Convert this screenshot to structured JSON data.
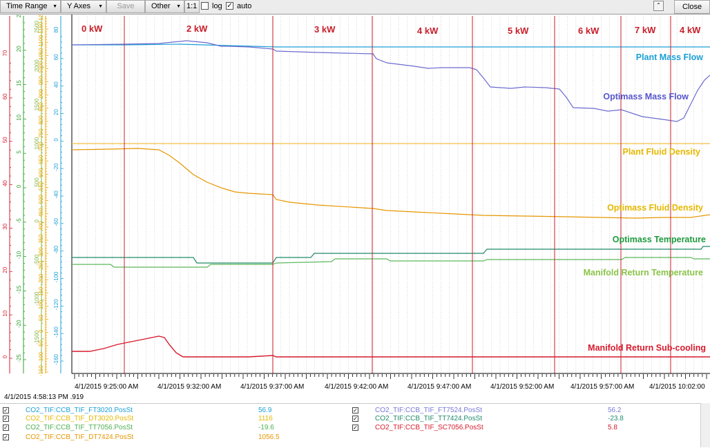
{
  "toolbar": {
    "time_range": "Time Range",
    "y_axes": "Y Axes",
    "save": "Save",
    "other": "Other",
    "ratio": "1:1",
    "log": "log",
    "auto": "auto",
    "auto_checked": "✓",
    "close": "Close"
  },
  "status_time": "4/1/2015 4:58:13 PM .919",
  "segments": [
    {
      "label": "0 kW"
    },
    {
      "label": "2 kW"
    },
    {
      "label": "3 kW"
    },
    {
      "label": "4 kW"
    },
    {
      "label": "5 kW"
    },
    {
      "label": "6 kW"
    },
    {
      "label": "7 kW"
    },
    {
      "label": "4 kW"
    }
  ],
  "time_labels": [
    "4/1/2015 9:25:00 AM",
    "4/1/2015 9:32:00 AM",
    "4/1/2015 9:37:00 AM",
    "4/1/2015 9:42:00 AM",
    "4/1/2015 9:47:00 AM",
    "4/1/2015 9:52:00 AM",
    "4/1/2015 9:57:00 AM",
    "4/1/2015 10:02:00"
  ],
  "annotations": [
    {
      "text": "Plant Mass Flow",
      "color": "#1a9fd6"
    },
    {
      "text": "Optimass Mass Flow",
      "color": "#5555cc"
    },
    {
      "text": "Plant Fluid Density",
      "color": "#e6b800"
    },
    {
      "text": "Optimass Fluid Density",
      "color": "#e6b800"
    },
    {
      "text": "Optimass Temperature",
      "color": "#1f9a3f"
    },
    {
      "text": "Manifold Return Temperature",
      "color": "#8bc34a"
    },
    {
      "text": "Manifold Return Sub-cooling",
      "color": "#d61a2c"
    }
  ],
  "axes": [
    {
      "color": "#d61a2c",
      "labels": [
        "0",
        "10",
        "20",
        "30",
        "40",
        "50",
        "60",
        "70"
      ]
    },
    {
      "color": "#2e9d2e",
      "labels": [
        "-25",
        "-20",
        "-15",
        "-10",
        "-5",
        "0",
        "5",
        "10",
        "15",
        "20",
        "25"
      ]
    },
    {
      "color": "#7fb541",
      "labels": [
        "-1500",
        "-1000",
        "-500",
        "0",
        "500",
        "1000",
        "1500",
        "2000",
        "2500"
      ]
    },
    {
      "color": "#f2a600",
      "labels": [
        "-150",
        "-100",
        "-50",
        "0",
        "50",
        "100",
        "150",
        "200",
        "250",
        "300",
        "350",
        "400",
        "450",
        "500",
        "550",
        "600",
        "650",
        "700",
        "750",
        "800",
        "850",
        "900",
        "950",
        "1000",
        "1050",
        "1100",
        "1150",
        "1200"
      ]
    },
    {
      "color": "#1fa0d6",
      "labels": [
        "-160",
        "-140",
        "-120",
        "-100",
        "-80",
        "-60",
        "-40",
        "-20",
        "0",
        "20",
        "40",
        "60",
        "80"
      ]
    }
  ],
  "legend": [
    {
      "name": "CO2_TIF:CCB_TIF_FT3020.PosSt",
      "value": "56.9",
      "color": "#1a9fd6",
      "check": "✓"
    },
    {
      "name": "CO2_TIF:CCB_TIF_DT3020.PosSt",
      "value": "1116",
      "color": "#e6b800",
      "check": "✓"
    },
    {
      "name": "CO2_TIF:CCB_TIF_TT7056.PosSt",
      "value": "-19.6",
      "color": "#4caf50",
      "check": "✓"
    },
    {
      "name": "CO2_TIF:CCB_TIF_DT7424.PosSt",
      "value": "1056.5",
      "color": "#e69500",
      "check": "✓"
    },
    {
      "name": "CO2_TIF:CCB_TIF_FT7524.PosSt",
      "value": "56.2",
      "color": "#7777dd",
      "check": "✓"
    },
    {
      "name": "CO2_TIF:CCB_TIF_TT7424.PosSt",
      "value": "-23.8",
      "color": "#1f8a6a",
      "check": "✓"
    },
    {
      "name": "CO2_TIF:CCB_TIF_SC7056.PosSt",
      "value": "5.8",
      "color": "#d61a2c",
      "check": "✓"
    }
  ]
}
